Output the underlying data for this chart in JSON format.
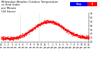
{
  "title": "Milwaukee Weather Outdoor Temperature vs Heat Index per Minute (24 Hours)",
  "title_fontsize": 2.8,
  "background_color": "#ffffff",
  "plot_bg_color": "#ffffff",
  "scatter_color": "#ff0000",
  "marker_size": 0.3,
  "legend_temp_color": "#0000ff",
  "legend_heat_color": "#ff0000",
  "tick_fontsize": 2.2,
  "ylim": [
    20,
    90
  ],
  "y_ticks": [
    20,
    30,
    40,
    50,
    60,
    70,
    80,
    90
  ],
  "vline_color": "#999999",
  "vline_style": ":",
  "vline_positions": [
    5.2,
    10.4
  ],
  "num_points": 1440,
  "xlim": [
    0,
    24
  ]
}
